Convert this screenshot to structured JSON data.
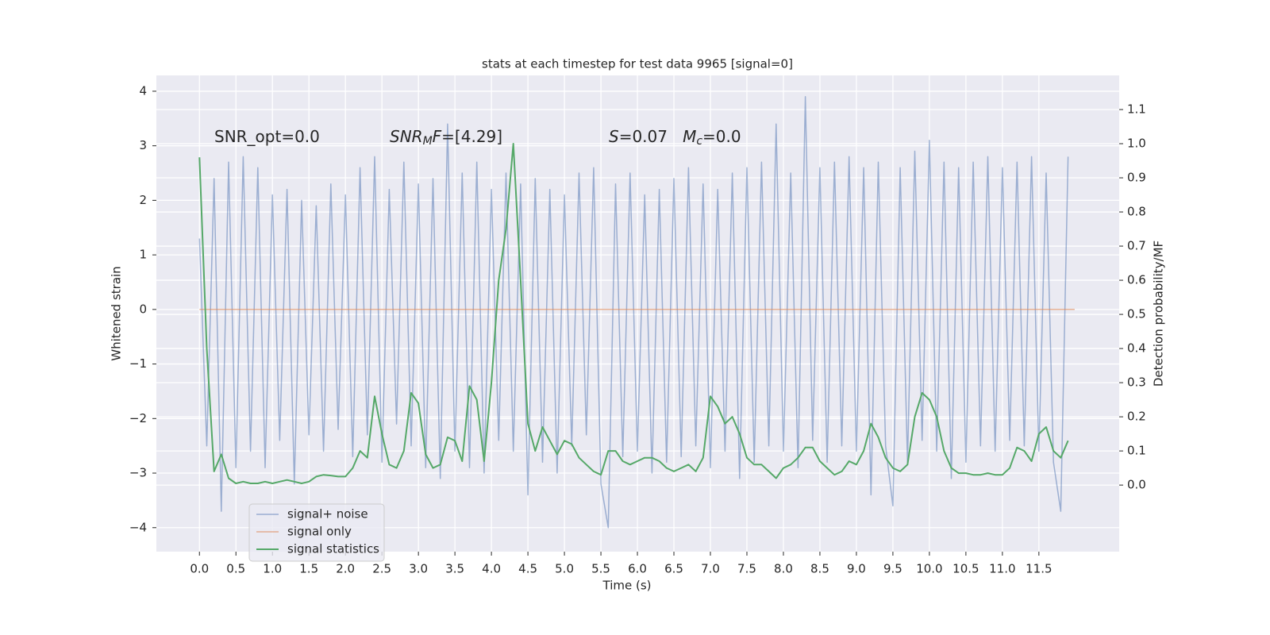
{
  "chart_data": {
    "type": "line",
    "title": "stats at each timestep for test data 9965 [signal=0]",
    "xlabel": "Time (s)",
    "ylabel": "Whitened strain",
    "y2label": "Detection probability/MF",
    "xlim": [
      -0.59,
      12.6
    ],
    "ylim": [
      -4.44,
      4.29
    ],
    "y2lim": [
      -0.195,
      1.2
    ],
    "grid": true,
    "legend": "lower left",
    "xticks": [
      {
        "value": 0,
        "label": "0.0"
      },
      {
        "value": 0.5,
        "label": "0.5"
      },
      {
        "value": 1,
        "label": "1.0"
      },
      {
        "value": 1.5,
        "label": "1.5"
      },
      {
        "value": 2,
        "label": "2.0"
      },
      {
        "value": 2.5,
        "label": "2.5"
      },
      {
        "value": 3,
        "label": "3.0"
      },
      {
        "value": 3.5,
        "label": "3.5"
      },
      {
        "value": 4,
        "label": "4.0"
      },
      {
        "value": 4.5,
        "label": "4.5"
      },
      {
        "value": 5,
        "label": "5.0"
      },
      {
        "value": 5.5,
        "label": "5.5"
      },
      {
        "value": 6,
        "label": "6.0"
      },
      {
        "value": 6.5,
        "label": "6.5"
      },
      {
        "value": 7,
        "label": "7.0"
      },
      {
        "value": 7.5,
        "label": "7.5"
      },
      {
        "value": 8,
        "label": "8.0"
      },
      {
        "value": 8.5,
        "label": "8.5"
      },
      {
        "value": 9,
        "label": "9.0"
      },
      {
        "value": 9.5,
        "label": "9.5"
      },
      {
        "value": 10,
        "label": "10.0"
      },
      {
        "value": 10.5,
        "label": "10.5"
      },
      {
        "value": 11,
        "label": "11.0"
      },
      {
        "value": 11.5,
        "label": "11.5"
      }
    ],
    "yticks": [
      {
        "value": -4,
        "label": "−4"
      },
      {
        "value": -3,
        "label": "−3"
      },
      {
        "value": -2,
        "label": "−2"
      },
      {
        "value": -1,
        "label": "−1"
      },
      0,
      1,
      2,
      3,
      4
    ],
    "y2ticks": [
      {
        "value": 0,
        "label": "0.0"
      },
      {
        "value": 0.1,
        "label": "0.1"
      },
      {
        "value": 0.2,
        "label": "0.2"
      },
      {
        "value": 0.3,
        "label": "0.3"
      },
      {
        "value": 0.4,
        "label": "0.4"
      },
      {
        "value": 0.5,
        "label": "0.5"
      },
      {
        "value": 0.6,
        "label": "0.6"
      },
      {
        "value": 0.7,
        "label": "0.7"
      },
      {
        "value": 0.8,
        "label": "0.8"
      },
      {
        "value": 0.9,
        "label": "0.9"
      },
      {
        "value": 1,
        "label": "1.0"
      },
      {
        "value": 1.1,
        "label": "1.1"
      }
    ],
    "annotations": [
      {
        "parts": [
          {
            "text": "SNR_opt=0.0",
            "style": "normal"
          }
        ]
      },
      {
        "parts": [
          {
            "text": "SNR",
            "style": "italic"
          },
          {
            "text": "M",
            "style": "sub"
          },
          {
            "text": "F",
            "style": "italic"
          },
          {
            "text": "=[4.29]",
            "style": "normal"
          }
        ]
      },
      {
        "parts": [
          {
            "text": "S",
            "style": "italic"
          },
          {
            "text": "=0.07   ",
            "style": "normal"
          },
          {
            "text": "M",
            "style": "italic"
          },
          {
            "text": "c",
            "style": "sub"
          },
          {
            "text": "=0.0",
            "style": "normal"
          }
        ]
      }
    ],
    "series": [
      {
        "name": "signal+ noise",
        "color": "#4c72b0",
        "x": [
          0.0,
          0.1,
          0.2,
          0.3,
          0.4,
          0.5,
          0.6,
          0.7,
          0.8,
          0.9,
          1.0,
          1.1,
          1.2,
          1.3,
          1.4,
          1.5,
          1.6,
          1.7,
          1.8,
          1.9,
          2.0,
          2.1,
          2.2,
          2.3,
          2.4,
          2.5,
          2.6,
          2.7,
          2.8,
          2.9,
          3.0,
          3.1,
          3.2,
          3.3,
          3.4,
          3.5,
          3.6,
          3.7,
          3.8,
          3.9,
          4.0,
          4.1,
          4.2,
          4.3,
          4.4,
          4.5,
          4.6,
          4.7,
          4.8,
          4.9,
          5.0,
          5.1,
          5.2,
          5.3,
          5.4,
          5.5,
          5.6,
          5.7,
          5.8,
          5.9,
          6.0,
          6.1,
          6.2,
          6.3,
          6.4,
          6.5,
          6.6,
          6.7,
          6.8,
          6.9,
          7.0,
          7.1,
          7.2,
          7.3,
          7.4,
          7.5,
          7.6,
          7.7,
          7.8,
          7.9,
          8.0,
          8.1,
          8.2,
          8.3,
          8.4,
          8.5,
          8.6,
          8.7,
          8.8,
          8.9,
          9.0,
          9.1,
          9.2,
          9.3,
          9.4,
          9.5,
          9.6,
          9.7,
          9.8,
          9.9,
          10.0,
          10.1,
          10.2,
          10.3,
          10.4,
          10.5,
          10.6,
          10.7,
          10.8,
          10.9,
          11.0,
          11.1,
          11.2,
          11.3,
          11.4,
          11.5,
          11.6,
          11.7,
          11.8,
          11.9
        ],
        "values": [
          1.3,
          -2.5,
          2.4,
          -3.7,
          2.7,
          -2.9,
          2.8,
          -2.6,
          2.6,
          -2.9,
          2.1,
          -2.4,
          2.2,
          -3.2,
          2.0,
          -2.3,
          1.9,
          -2.6,
          2.3,
          -2.2,
          2.1,
          -2.7,
          2.6,
          -2.3,
          2.8,
          -2.8,
          2.2,
          -2.1,
          2.7,
          -2.5,
          2.3,
          -2.9,
          2.4,
          -3.1,
          3.4,
          -2.6,
          2.5,
          -2.9,
          2.7,
          -3.0,
          2.2,
          -2.4,
          2.5,
          -2.6,
          2.3,
          -3.4,
          2.4,
          -2.8,
          2.2,
          -3.0,
          2.1,
          -2.5,
          2.5,
          -2.3,
          2.6,
          -3.2,
          -4.0,
          2.3,
          -2.7,
          2.5,
          -2.6,
          2.1,
          -3.0,
          2.2,
          -2.8,
          2.4,
          -2.7,
          2.6,
          -2.5,
          2.3,
          -2.9,
          2.2,
          -2.6,
          2.5,
          -3.1,
          2.6,
          -2.8,
          2.7,
          -2.5,
          3.4,
          -2.6,
          2.5,
          -2.9,
          3.9,
          -2.4,
          2.6,
          -2.8,
          2.7,
          -2.5,
          2.8,
          -2.6,
          2.6,
          -3.4,
          2.7,
          -2.5,
          -3.6,
          2.6,
          -2.8,
          2.9,
          -2.4,
          3.1,
          -2.6,
          2.7,
          -3.1,
          2.6,
          -2.8,
          2.7,
          -2.5,
          2.8,
          -2.6,
          2.6,
          -2.4,
          2.7,
          -2.5,
          2.8,
          -2.6,
          2.5,
          -2.8,
          -3.7,
          2.8
        ]
      },
      {
        "name": "signal only",
        "color": "#dd8452",
        "x": [
          0.0,
          11.99
        ],
        "values": [
          0,
          0
        ]
      },
      {
        "name": "signal statistics",
        "color": "#55a868",
        "axis": "y2",
        "x": [
          0.0,
          0.1,
          0.2,
          0.3,
          0.4,
          0.5,
          0.6,
          0.7,
          0.8,
          0.9,
          1.0,
          1.1,
          1.2,
          1.3,
          1.4,
          1.5,
          1.6,
          1.7,
          1.8,
          1.9,
          2.0,
          2.1,
          2.2,
          2.3,
          2.4,
          2.5,
          2.6,
          2.7,
          2.8,
          2.9,
          3.0,
          3.1,
          3.2,
          3.3,
          3.4,
          3.5,
          3.6,
          3.7,
          3.8,
          3.9,
          4.0,
          4.1,
          4.2,
          4.3,
          4.4,
          4.5,
          4.6,
          4.7,
          4.8,
          4.9,
          5.0,
          5.1,
          5.2,
          5.3,
          5.4,
          5.5,
          5.6,
          5.7,
          5.8,
          5.9,
          6.0,
          6.1,
          6.2,
          6.3,
          6.4,
          6.5,
          6.6,
          6.7,
          6.8,
          6.9,
          7.0,
          7.1,
          7.2,
          7.3,
          7.4,
          7.5,
          7.6,
          7.7,
          7.8,
          7.9,
          8.0,
          8.1,
          8.2,
          8.3,
          8.4,
          8.5,
          8.6,
          8.7,
          8.8,
          8.9,
          9.0,
          9.1,
          9.2,
          9.3,
          9.4,
          9.5,
          9.6,
          9.7,
          9.8,
          9.9,
          10.0,
          10.1,
          10.2,
          10.3,
          10.4,
          10.5,
          10.6,
          10.7,
          10.8,
          10.9,
          11.0,
          11.1,
          11.2,
          11.3,
          11.4,
          11.5,
          11.6,
          11.7,
          11.8,
          11.9
        ],
        "values": [
          0.96,
          0.4,
          0.04,
          0.09,
          0.02,
          0.005,
          0.01,
          0.005,
          0.005,
          0.01,
          0.005,
          0.01,
          0.015,
          0.01,
          0.005,
          0.01,
          0.025,
          0.03,
          0.028,
          0.025,
          0.025,
          0.05,
          0.1,
          0.08,
          0.26,
          0.15,
          0.06,
          0.05,
          0.1,
          0.27,
          0.24,
          0.09,
          0.05,
          0.06,
          0.14,
          0.13,
          0.07,
          0.29,
          0.25,
          0.07,
          0.3,
          0.6,
          0.75,
          1.0,
          0.6,
          0.18,
          0.1,
          0.17,
          0.13,
          0.09,
          0.13,
          0.12,
          0.08,
          0.06,
          0.04,
          0.03,
          0.1,
          0.1,
          0.07,
          0.06,
          0.07,
          0.08,
          0.08,
          0.07,
          0.05,
          0.04,
          0.05,
          0.06,
          0.04,
          0.08,
          0.26,
          0.23,
          0.18,
          0.2,
          0.15,
          0.08,
          0.06,
          0.06,
          0.04,
          0.02,
          0.05,
          0.06,
          0.08,
          0.11,
          0.11,
          0.07,
          0.05,
          0.03,
          0.04,
          0.07,
          0.06,
          0.1,
          0.18,
          0.14,
          0.08,
          0.05,
          0.04,
          0.06,
          0.2,
          0.27,
          0.25,
          0.2,
          0.1,
          0.05,
          0.035,
          0.035,
          0.03,
          0.03,
          0.035,
          0.03,
          0.03,
          0.05,
          0.11,
          0.1,
          0.07,
          0.15,
          0.17,
          0.1,
          0.08,
          0.13
        ]
      }
    ]
  }
}
